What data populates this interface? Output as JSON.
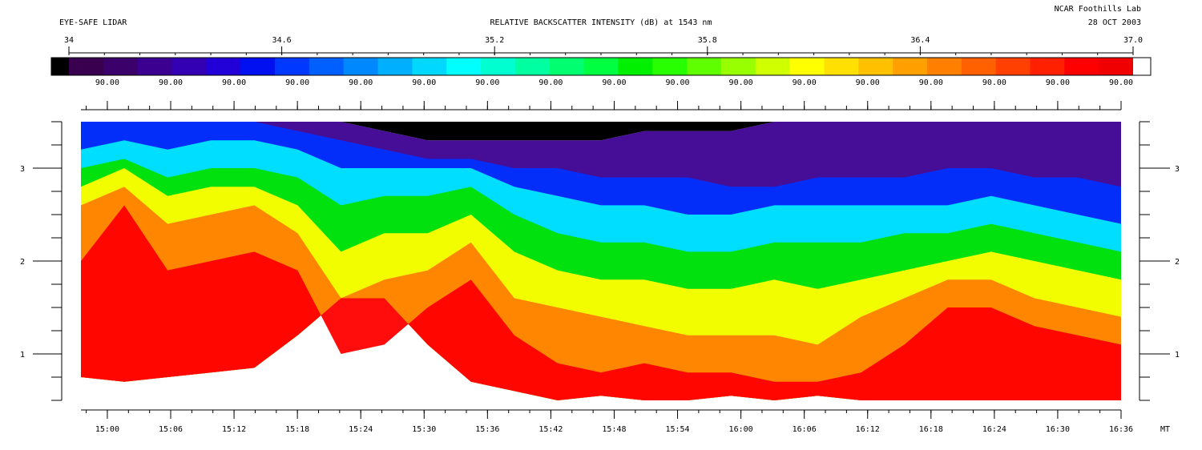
{
  "header": {
    "instrument": "EYE-SAFE LIDAR",
    "title": "RELATIVE BACKSCATTER INTENSITY (dB) at 1543 nm",
    "lab": "NCAR Foothills Lab",
    "date": "28 OCT 2003"
  },
  "colorbar": {
    "range": [
      34,
      37.0
    ],
    "tick_labels": [
      "34",
      "34.6",
      "35.2",
      "35.8",
      "36.4",
      "37.0"
    ],
    "tick_values": [
      34,
      34.6,
      35.2,
      35.8,
      36.4,
      37.0
    ],
    "under_color": "#000000",
    "over_color": "#ffffff",
    "colors": [
      "#3a0050",
      "#3c006a",
      "#3c0090",
      "#3300b4",
      "#2200d8",
      "#0010f0",
      "#0038ff",
      "#0060ff",
      "#0088ff",
      "#00b0ff",
      "#00d8ff",
      "#00ffff",
      "#00ffd0",
      "#00ffa0",
      "#00ff70",
      "#00ff40",
      "#00f000",
      "#28ff00",
      "#60ff00",
      "#98ff00",
      "#d0ff00",
      "#ffff00",
      "#ffe000",
      "#ffc000",
      "#ffa000",
      "#ff8000",
      "#ff6000",
      "#ff4000",
      "#ff2000",
      "#ff0000",
      "#f00000"
    ],
    "secondary_labels": [
      "90.00",
      "90.00",
      "90.00",
      "90.00",
      "90.00",
      "90.00",
      "90.00",
      "90.00",
      "90.00",
      "90.00",
      "90.00",
      "90.00",
      "90.00",
      "90.00",
      "90.00",
      "90.00",
      "90.00"
    ]
  },
  "chart_data": {
    "type": "heatmap",
    "title": "RELATIVE BACKSCATTER INTENSITY (dB) at 1543 nm",
    "xlabel": "MT",
    "ylabel": "",
    "x_tick_labels": [
      "15:00",
      "15:06",
      "15:12",
      "15:18",
      "15:24",
      "15:30",
      "15:36",
      "15:42",
      "15:48",
      "15:54",
      "16:00",
      "16:06",
      "16:12",
      "16:18",
      "16:24",
      "16:30",
      "16:36"
    ],
    "x_range_minutes": [
      897.5,
      996
    ],
    "y_tick_labels": [
      "1",
      "2",
      "3"
    ],
    "y_range": [
      0.5,
      3.5
    ],
    "value_range": [
      34,
      37.0
    ],
    "grid": false,
    "layers": [
      {
        "name": "red",
        "color": "#ff0000",
        "top": [
          2.0,
          2.6,
          1.9,
          2.0,
          2.1,
          1.9,
          1.0,
          1.1,
          1.5,
          1.8,
          1.2,
          0.9,
          0.8,
          0.9,
          0.8,
          0.8,
          0.7,
          0.7,
          0.8,
          1.1,
          1.5,
          1.5,
          1.3,
          1.2,
          1.1
        ]
      },
      {
        "name": "orange",
        "color": "#ff8000",
        "top": [
          2.6,
          2.8,
          2.4,
          2.5,
          2.6,
          2.3,
          1.6,
          1.8,
          1.9,
          2.2,
          1.6,
          1.5,
          1.4,
          1.3,
          1.2,
          1.2,
          1.2,
          1.1,
          1.4,
          1.6,
          1.8,
          1.8,
          1.6,
          1.5,
          1.4
        ]
      },
      {
        "name": "yellow",
        "color": "#ffff00",
        "top": [
          2.8,
          3.0,
          2.7,
          2.8,
          2.8,
          2.6,
          2.1,
          2.3,
          2.3,
          2.5,
          2.1,
          1.9,
          1.8,
          1.8,
          1.7,
          1.7,
          1.8,
          1.7,
          1.8,
          1.9,
          2.0,
          2.1,
          2.0,
          1.9,
          1.8
        ]
      },
      {
        "name": "green",
        "color": "#00e000",
        "top": [
          3.0,
          3.1,
          2.9,
          3.0,
          3.0,
          2.9,
          2.6,
          2.7,
          2.7,
          2.8,
          2.5,
          2.3,
          2.2,
          2.2,
          2.1,
          2.1,
          2.2,
          2.2,
          2.2,
          2.3,
          2.3,
          2.4,
          2.3,
          2.2,
          2.1
        ]
      },
      {
        "name": "cyan",
        "color": "#00e8ff",
        "top": [
          3.2,
          3.3,
          3.2,
          3.3,
          3.3,
          3.2,
          3.0,
          3.0,
          3.0,
          3.0,
          2.8,
          2.7,
          2.6,
          2.6,
          2.5,
          2.5,
          2.6,
          2.6,
          2.6,
          2.6,
          2.6,
          2.7,
          2.6,
          2.5,
          2.4
        ]
      },
      {
        "name": "blue",
        "color": "#0030ff",
        "top": [
          3.5,
          3.5,
          3.5,
          3.5,
          3.5,
          3.4,
          3.3,
          3.2,
          3.1,
          3.1,
          3.0,
          3.0,
          2.9,
          2.9,
          2.9,
          2.8,
          2.8,
          2.9,
          2.9,
          2.9,
          3.0,
          3.0,
          2.9,
          2.9,
          2.8
        ]
      },
      {
        "name": "violet",
        "color": "#3c0090",
        "top": [
          3.5,
          3.5,
          3.5,
          3.5,
          3.5,
          3.5,
          3.5,
          3.4,
          3.3,
          3.3,
          3.3,
          3.3,
          3.3,
          3.4,
          3.4,
          3.4,
          3.5,
          3.5,
          3.5,
          3.5,
          3.5,
          3.5,
          3.5,
          3.5,
          3.5
        ]
      }
    ],
    "ground_bottom": [
      0.75,
      0.7,
      0.75,
      0.8,
      0.85,
      1.2,
      1.6,
      1.6,
      1.1,
      0.7,
      0.6,
      0.5,
      0.55,
      0.5,
      0.5,
      0.55,
      0.5,
      0.55,
      0.5,
      0.5,
      0.5,
      0.5,
      0.5,
      0.5,
      0.5
    ]
  }
}
